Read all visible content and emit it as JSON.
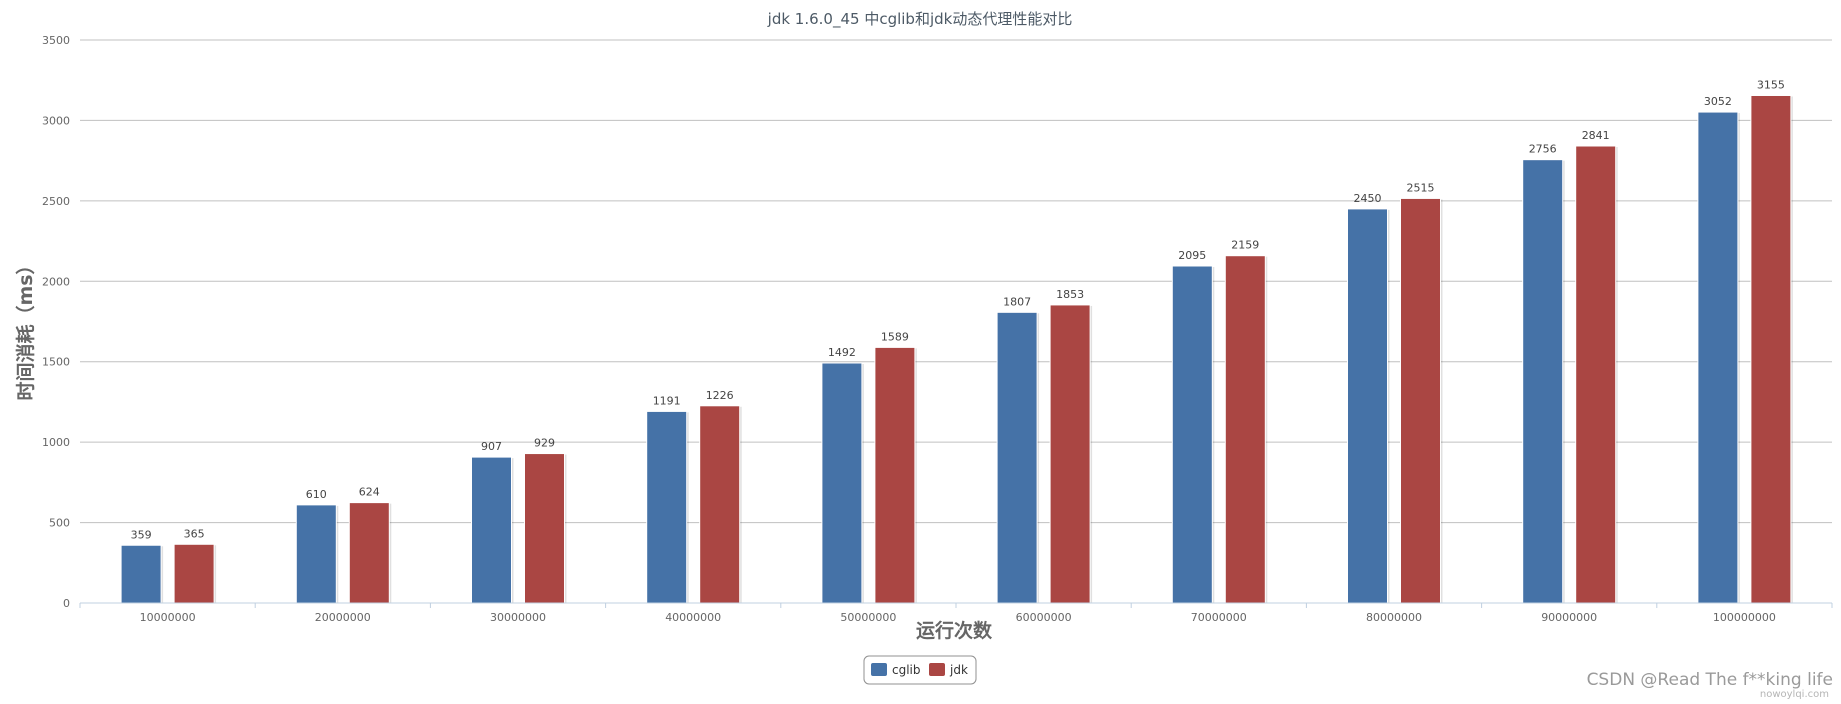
{
  "chart_data": {
    "type": "bar",
    "title": "jdk 1.6.0_45 中cglib和jdk动态代理性能对比",
    "xlabel": "运行次数",
    "ylabel": "时间消耗（ms）",
    "categories": [
      "10000000",
      "20000000",
      "30000000",
      "40000000",
      "50000000",
      "60000000",
      "70000000",
      "80000000",
      "90000000",
      "100000000"
    ],
    "series": [
      {
        "name": "cglib",
        "color": "#4572a7",
        "values": [
          359,
          610,
          907,
          1191,
          1492,
          1807,
          2095,
          2450,
          2756,
          3052
        ]
      },
      {
        "name": "jdk",
        "color": "#aa4643",
        "values": [
          365,
          624,
          929,
          1226,
          1589,
          1853,
          2159,
          2515,
          2841,
          3155
        ]
      }
    ],
    "ylim": [
      0,
      3500
    ],
    "yticks": [
      0,
      500,
      1000,
      1500,
      2000,
      2500,
      3000,
      3500
    ],
    "grid": true,
    "legend_position": "bottom-center",
    "data_labels": true
  },
  "watermark": {
    "text": "CSDN @Read The f**king life",
    "sub_text": "nowoylqi.com"
  }
}
